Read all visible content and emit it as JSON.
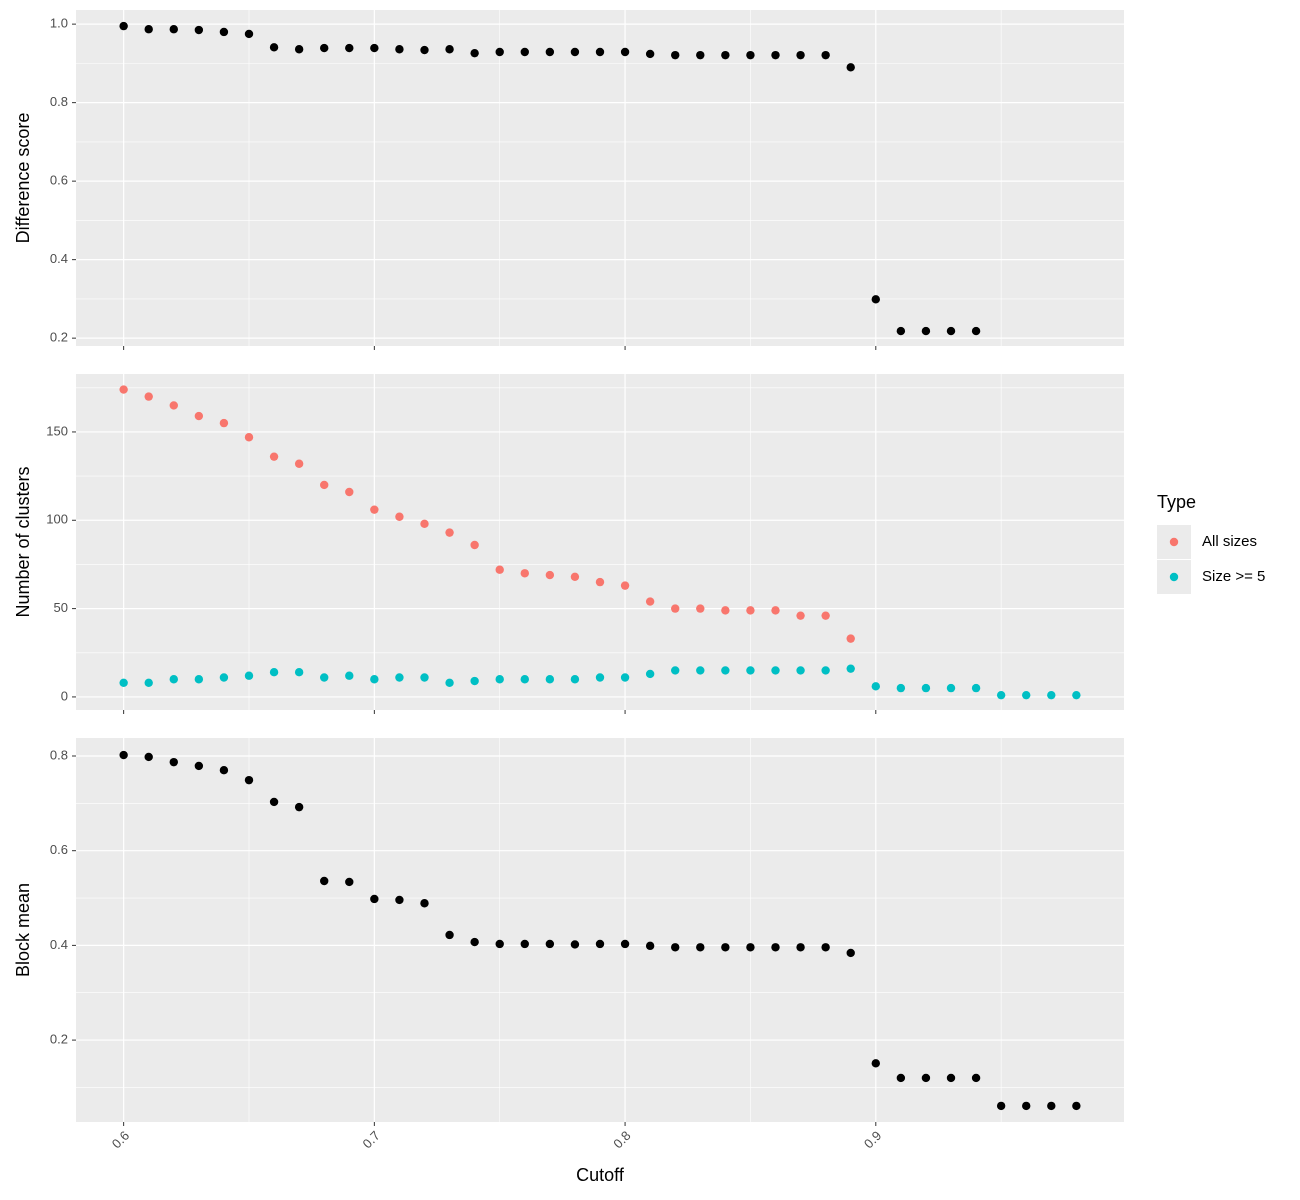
{
  "chart_data": [
    {
      "type": "scatter",
      "y_label": "Difference score",
      "color": "#000000",
      "x": [
        0.6,
        0.61,
        0.62,
        0.63,
        0.64,
        0.65,
        0.66,
        0.67,
        0.68,
        0.69,
        0.7,
        0.71,
        0.72,
        0.73,
        0.74,
        0.75,
        0.76,
        0.77,
        0.78,
        0.79,
        0.8,
        0.81,
        0.82,
        0.83,
        0.84,
        0.85,
        0.86,
        0.87,
        0.88,
        0.89,
        0.9,
        0.91,
        0.92,
        0.93,
        0.94
      ],
      "values": [
        0.995,
        0.987,
        0.987,
        0.985,
        0.98,
        0.975,
        0.941,
        0.936,
        0.939,
        0.939,
        0.939,
        0.936,
        0.934,
        0.936,
        0.926,
        0.929,
        0.929,
        0.929,
        0.929,
        0.929,
        0.929,
        0.924,
        0.921,
        0.921,
        0.921,
        0.921,
        0.921,
        0.921,
        0.921,
        0.89,
        0.299,
        0.218,
        0.218,
        0.218,
        0.218
      ],
      "xlim": [
        0.581,
        0.999
      ],
      "xticks": [
        0.6,
        0.7,
        0.8,
        0.9
      ],
      "ylim": [
        0.18,
        1.036
      ],
      "yticks": [
        0.2,
        0.4,
        0.6,
        0.8,
        {
          "value": 1.0,
          "label": "1.0"
        }
      ],
      "grid": true
    },
    {
      "type": "scatter",
      "y_label": "Number of clusters",
      "legend_title": "Type",
      "legend": "right",
      "series": [
        {
          "name": "All sizes",
          "color": "#F8766D",
          "x": [
            0.6,
            0.61,
            0.62,
            0.63,
            0.64,
            0.65,
            0.66,
            0.67,
            0.68,
            0.69,
            0.7,
            0.71,
            0.72,
            0.73,
            0.74,
            0.75,
            0.76,
            0.77,
            0.78,
            0.79,
            0.8,
            0.81,
            0.82,
            0.83,
            0.84,
            0.85,
            0.86,
            0.87,
            0.88,
            0.89
          ],
          "values": [
            174,
            170,
            165,
            159,
            155,
            147,
            136,
            132,
            120,
            116,
            106,
            102,
            98,
            93,
            86,
            72,
            70,
            69,
            68,
            65,
            63,
            54,
            50,
            50,
            49,
            49,
            49,
            46,
            46,
            33
          ]
        },
        {
          "name": "Size >= 5",
          "color": "#00BFC4",
          "x": [
            0.6,
            0.61,
            0.62,
            0.63,
            0.64,
            0.65,
            0.66,
            0.67,
            0.68,
            0.69,
            0.7,
            0.71,
            0.72,
            0.73,
            0.74,
            0.75,
            0.76,
            0.77,
            0.78,
            0.79,
            0.8,
            0.81,
            0.82,
            0.83,
            0.84,
            0.85,
            0.86,
            0.87,
            0.88,
            0.89,
            0.9,
            0.91,
            0.92,
            0.93,
            0.94,
            0.95,
            0.96,
            0.97,
            0.98
          ],
          "values": [
            8,
            8,
            10,
            10,
            11,
            12,
            14,
            14,
            11,
            12,
            10,
            11,
            11,
            8,
            9,
            10,
            10,
            10,
            10,
            11,
            11,
            13,
            15,
            15,
            15,
            15,
            15,
            15,
            15,
            16,
            6,
            5,
            5,
            5,
            5,
            1,
            1,
            1,
            1
          ]
        }
      ],
      "xlim": [
        0.581,
        0.999
      ],
      "xticks": [
        0.6,
        0.7,
        0.8,
        0.9
      ],
      "ylim": [
        -7.4,
        182.8
      ],
      "yticks": [
        0,
        50,
        100,
        150
      ],
      "grid": true
    },
    {
      "type": "scatter",
      "y_label": "Block mean",
      "x_label": "Cutoff",
      "color": "#000000",
      "x": [
        0.6,
        0.61,
        0.62,
        0.63,
        0.64,
        0.65,
        0.66,
        0.67,
        0.68,
        0.69,
        0.7,
        0.71,
        0.72,
        0.73,
        0.74,
        0.75,
        0.76,
        0.77,
        0.78,
        0.79,
        0.8,
        0.81,
        0.82,
        0.83,
        0.84,
        0.85,
        0.86,
        0.87,
        0.88,
        0.89,
        0.9,
        0.91,
        0.92,
        0.93,
        0.94,
        0.95,
        0.96,
        0.97,
        0.98
      ],
      "values": [
        0.802,
        0.798,
        0.787,
        0.779,
        0.77,
        0.749,
        0.703,
        0.692,
        0.536,
        0.534,
        0.498,
        0.496,
        0.489,
        0.422,
        0.407,
        0.403,
        0.403,
        0.403,
        0.402,
        0.403,
        0.403,
        0.399,
        0.396,
        0.396,
        0.396,
        0.396,
        0.396,
        0.396,
        0.396,
        0.384,
        0.151,
        0.12,
        0.12,
        0.12,
        0.12,
        0.061,
        0.061,
        0.061,
        0.061
      ],
      "xlim": [
        0.581,
        0.999
      ],
      "xticks": [
        0.6,
        0.7,
        0.8,
        0.9
      ],
      "ylim": [
        0.027,
        0.838
      ],
      "yticks": [
        0.2,
        0.4,
        0.6,
        0.8
      ],
      "grid": true
    }
  ]
}
